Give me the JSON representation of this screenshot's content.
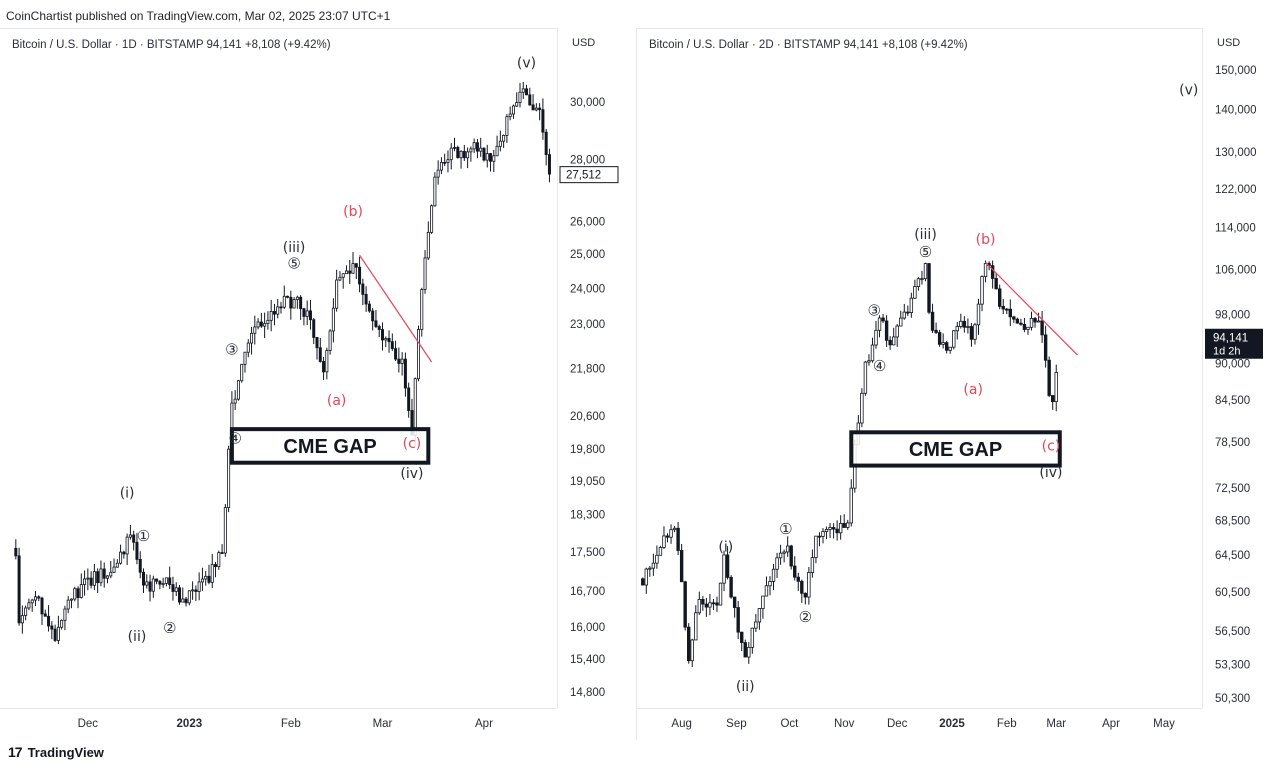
{
  "header": {
    "publisher": "CoinChartist published on TradingView.com, Mar 02, 2025 23:07 UTC+1"
  },
  "footer": {
    "brand": "TradingView",
    "brand_mark": "17"
  },
  "colors": {
    "candle": "#131722",
    "wave_red": "#e0475c",
    "price_tag_bg": "#131722",
    "grid": "#e6e8ec"
  },
  "chart_data": [
    {
      "type": "candlestick",
      "legend": "Bitcoin / U.S. Dollar · 1D · BITSTAMP  94,141  +8,108 (+9.42%)",
      "currency": "USD",
      "log_scale": true,
      "y_ticks": [
        30000,
        28000,
        26000,
        25000,
        24000,
        23000,
        21800,
        20600,
        19800,
        19050,
        18300,
        17500,
        16700,
        16000,
        15400,
        14800
      ],
      "x_ticks": [
        "Dec",
        "2023",
        "Feb",
        "Mar",
        "Apr"
      ],
      "current_price_label": "27,512",
      "series": [
        {
          "x": "2022-11-09",
          "y": 17600
        },
        {
          "x": "2022-11-10",
          "y": 16100
        },
        {
          "x": "2022-11-15",
          "y": 16700
        },
        {
          "x": "2022-11-21",
          "y": 15800
        },
        {
          "x": "2022-11-24",
          "y": 16500
        },
        {
          "x": "2022-12-03",
          "y": 17000
        },
        {
          "x": "2022-12-10",
          "y": 17200
        },
        {
          "x": "2022-12-14",
          "y": 17900
        },
        {
          "x": "2022-12-18",
          "y": 16800
        },
        {
          "x": "2022-12-25",
          "y": 16850
        },
        {
          "x": "2022-12-31",
          "y": 16550
        },
        {
          "x": "2023-01-06",
          "y": 16900
        },
        {
          "x": "2023-01-11",
          "y": 17500
        },
        {
          "x": "2023-01-14",
          "y": 20900
        },
        {
          "x": "2023-01-20",
          "y": 22700
        },
        {
          "x": "2023-01-29",
          "y": 23600
        },
        {
          "x": "2023-02-02",
          "y": 23700
        },
        {
          "x": "2023-02-07",
          "y": 23200
        },
        {
          "x": "2023-02-11",
          "y": 21700
        },
        {
          "x": "2023-02-15",
          "y": 24200
        },
        {
          "x": "2023-02-20",
          "y": 24800
        },
        {
          "x": "2023-02-26",
          "y": 23300
        },
        {
          "x": "2023-03-03",
          "y": 22400
        },
        {
          "x": "2023-03-07",
          "y": 22000
        },
        {
          "x": "2023-03-10",
          "y": 20200
        },
        {
          "x": "2023-03-13",
          "y": 24100
        },
        {
          "x": "2023-03-17",
          "y": 27400
        },
        {
          "x": "2023-03-22",
          "y": 28200
        },
        {
          "x": "2023-03-29",
          "y": 28400
        },
        {
          "x": "2023-04-04",
          "y": 28100
        },
        {
          "x": "2023-04-11",
          "y": 30200
        },
        {
          "x": "2023-04-14",
          "y": 30400
        },
        {
          "x": "2023-04-18",
          "y": 29500
        },
        {
          "x": "2023-04-21",
          "y": 27500
        }
      ],
      "annotations": {
        "waves": [
          {
            "label": "(i)",
            "x": "2022-12-13",
            "y": 18700,
            "color": "dark"
          },
          {
            "label": "(ii)",
            "x": "2022-12-16",
            "y": 15750,
            "color": "dark"
          },
          {
            "label": "(iii)",
            "x": "2023-02-02",
            "y": 25100,
            "color": "dark"
          },
          {
            "label": "(iv)",
            "x": "2023-03-10",
            "y": 19150,
            "color": "dark"
          },
          {
            "label": "(v)",
            "x": "2023-04-14",
            "y": 31300,
            "color": "dark"
          },
          {
            "label": "(a)",
            "x": "2023-02-15",
            "y": 20900,
            "color": "red"
          },
          {
            "label": "(b)",
            "x": "2023-02-20",
            "y": 26200,
            "color": "red"
          },
          {
            "label": "(c)",
            "x": "2023-03-10",
            "y": 19850,
            "color": "red"
          },
          {
            "label": "①",
            "x": "2022-12-18",
            "y": 17750,
            "color": "dark"
          },
          {
            "label": "②",
            "x": "2022-12-26",
            "y": 15900,
            "color": "dark"
          },
          {
            "label": "③",
            "x": "2023-01-14",
            "y": 22200,
            "color": "dark"
          },
          {
            "label": "④",
            "x": "2023-01-15",
            "y": 19950,
            "color": "dark"
          },
          {
            "label": "⑤",
            "x": "2023-02-02",
            "y": 24600,
            "color": "dark"
          }
        ],
        "box": {
          "label": "CME GAP",
          "x_start": "2023-01-14",
          "x_end": "2023-03-15",
          "y_low": 19500,
          "y_high": 20300
        },
        "trendline": {
          "x_start": "2023-02-22",
          "y_start": 25000,
          "x_end": "2023-03-16",
          "y_end": 22000
        }
      }
    },
    {
      "type": "candlestick",
      "legend": "Bitcoin / U.S. Dollar · 2D · BITSTAMP  94,141  +8,108 (+9.42%)",
      "currency": "USD",
      "log_scale": true,
      "y_ticks": [
        150000,
        140000,
        130000,
        122000,
        114000,
        106000,
        98000,
        90000,
        84500,
        78500,
        72500,
        68500,
        64500,
        60500,
        56500,
        53300,
        50300
      ],
      "x_ticks": [
        "Aug",
        "Sep",
        "Oct",
        "Nov",
        "Dec",
        "2025",
        "Feb",
        "Mar",
        "Apr",
        "May"
      ],
      "current_price_label": "94,141",
      "current_price_countdown": "1d 2h",
      "series": [
        {
          "x": "2024-07-10",
          "y": 62000
        },
        {
          "x": "2024-07-20",
          "y": 66000
        },
        {
          "x": "2024-07-29",
          "y": 67500
        },
        {
          "x": "2024-08-05",
          "y": 54000
        },
        {
          "x": "2024-08-10",
          "y": 59500
        },
        {
          "x": "2024-08-20",
          "y": 58800
        },
        {
          "x": "2024-08-25",
          "y": 64000
        },
        {
          "x": "2024-09-06",
          "y": 53800
        },
        {
          "x": "2024-09-12",
          "y": 58000
        },
        {
          "x": "2024-09-22",
          "y": 63000
        },
        {
          "x": "2024-09-29",
          "y": 65500
        },
        {
          "x": "2024-10-10",
          "y": 59500
        },
        {
          "x": "2024-10-15",
          "y": 66000
        },
        {
          "x": "2024-10-25",
          "y": 67500
        },
        {
          "x": "2024-11-04",
          "y": 68500
        },
        {
          "x": "2024-11-06",
          "y": 76000
        },
        {
          "x": "2024-11-12",
          "y": 88500
        },
        {
          "x": "2024-11-22",
          "y": 98500
        },
        {
          "x": "2024-11-26",
          "y": 93000
        },
        {
          "x": "2024-12-05",
          "y": 98000
        },
        {
          "x": "2024-12-17",
          "y": 106500
        },
        {
          "x": "2024-12-20",
          "y": 95000
        },
        {
          "x": "2024-12-30",
          "y": 93000
        },
        {
          "x": "2025-01-07",
          "y": 97000
        },
        {
          "x": "2025-01-13",
          "y": 94500
        },
        {
          "x": "2025-01-20",
          "y": 108000
        },
        {
          "x": "2025-01-27",
          "y": 101000
        },
        {
          "x": "2025-02-03",
          "y": 97500
        },
        {
          "x": "2025-02-10",
          "y": 96500
        },
        {
          "x": "2025-02-20",
          "y": 97500
        },
        {
          "x": "2025-02-25",
          "y": 86000
        },
        {
          "x": "2025-02-28",
          "y": 84000
        },
        {
          "x": "2025-03-02",
          "y": 94141
        }
      ],
      "annotations": {
        "waves": [
          {
            "label": "(i)",
            "x": "2024-08-26",
            "y": 65000,
            "color": "dark"
          },
          {
            "label": "(ii)",
            "x": "2024-09-06",
            "y": 51000,
            "color": "dark"
          },
          {
            "label": "(iii)",
            "x": "2024-12-17",
            "y": 112000,
            "color": "dark"
          },
          {
            "label": "(iv)",
            "x": "2025-02-26",
            "y": 74000,
            "color": "dark"
          },
          {
            "label": "(v)",
            "x": "2025-05-15",
            "y": 144000,
            "color": "dark"
          },
          {
            "label": "(a)",
            "x": "2025-01-13",
            "y": 85500,
            "color": "red"
          },
          {
            "label": "(b)",
            "x": "2025-01-20",
            "y": 111000,
            "color": "red"
          },
          {
            "label": "(c)",
            "x": "2025-02-26",
            "y": 77500,
            "color": "red"
          },
          {
            "label": "①",
            "x": "2024-09-29",
            "y": 67000,
            "color": "dark"
          },
          {
            "label": "②",
            "x": "2024-10-10",
            "y": 57500,
            "color": "dark"
          },
          {
            "label": "③",
            "x": "2024-11-18",
            "y": 98000,
            "color": "dark"
          },
          {
            "label": "④",
            "x": "2024-11-21",
            "y": 89000,
            "color": "dark"
          },
          {
            "label": "⑤",
            "x": "2024-12-17",
            "y": 108500,
            "color": "dark"
          }
        ],
        "box": {
          "label": "CME GAP",
          "x_start": "2024-11-05",
          "x_end": "2025-03-03",
          "y_low": 75500,
          "y_high": 80000
        },
        "trendline": {
          "x_start": "2025-01-20",
          "y_start": 107500,
          "x_end": "2025-03-13",
          "y_end": 91500
        }
      }
    }
  ]
}
